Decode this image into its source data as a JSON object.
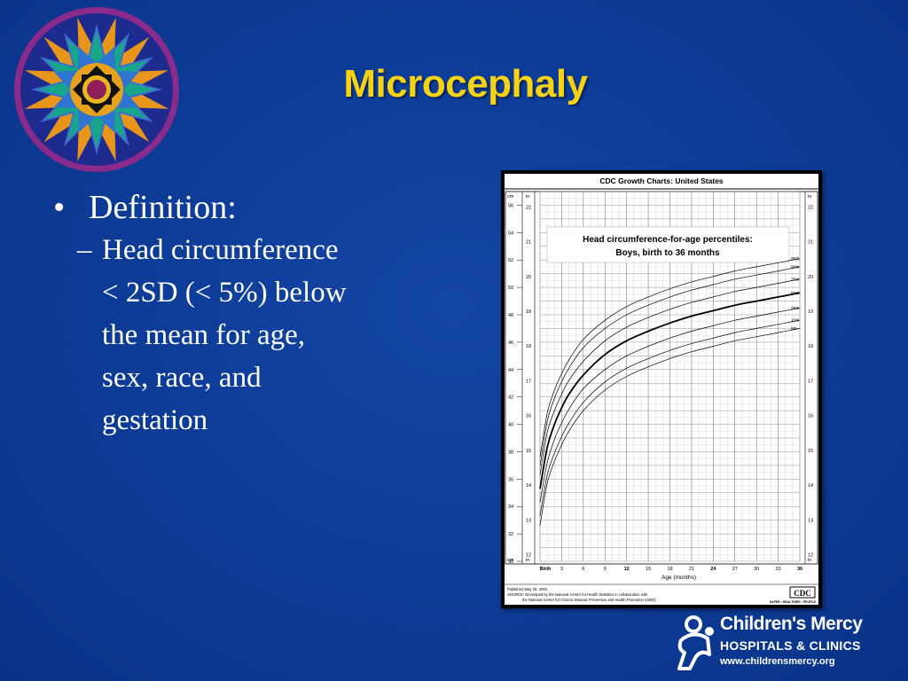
{
  "slide": {
    "title": "Microcephaly",
    "bullet": "Definition:",
    "bullet_marker": "•",
    "sub_marker": "–",
    "sub_lines": [
      "Head circumference",
      "< 2SD (< 5%) below",
      "the mean for age,",
      "sex, race, and",
      "gestation"
    ]
  },
  "brand": {
    "name": "Children's Mercy",
    "subtitle": "HOSPITALS & CLINICS",
    "url": "www.childrensmercy.org"
  },
  "colors": {
    "background": "#0c3b95",
    "title": "#f6d216",
    "text": "#ffffff"
  },
  "icons": {
    "logo": "mandala-star-logo",
    "brand": "family-figure-icon"
  },
  "chart_data": {
    "type": "line",
    "header": "CDC Growth Charts: United States",
    "title": "Head circumference-for-age percentiles:",
    "subtitle": "Boys, birth to 36 months",
    "xlabel": "Age (months)",
    "x_ticks": [
      "Birth",
      "3",
      "6",
      "9",
      "12",
      "15",
      "18",
      "21",
      "24",
      "27",
      "30",
      "33",
      "36"
    ],
    "x_tick_values": [
      0,
      3,
      6,
      9,
      12,
      15,
      18,
      21,
      24,
      27,
      30,
      33,
      36
    ],
    "xlim": [
      0,
      36
    ],
    "left_unit_top": "cm",
    "left_unit_bottom": "cm",
    "right_unit": "in",
    "ylim_cm": [
      30,
      57
    ],
    "cm_ticks": [
      "30",
      "32",
      "34",
      "36",
      "38",
      "40",
      "42",
      "44",
      "46",
      "48",
      "50",
      "52",
      "54",
      "56"
    ],
    "cm_tick_values": [
      30,
      32,
      34,
      36,
      38,
      40,
      42,
      44,
      46,
      48,
      50,
      52,
      54,
      56
    ],
    "in_ticks": [
      "12",
      "13",
      "14",
      "15",
      "16",
      "17",
      "18",
      "19",
      "20",
      "21",
      "22"
    ],
    "in_tick_values": [
      12,
      13,
      14,
      15,
      16,
      17,
      18,
      19,
      20,
      21,
      22
    ],
    "x": [
      0,
      1,
      2,
      3,
      4,
      6,
      9,
      12,
      15,
      18,
      21,
      24,
      27,
      30,
      33,
      36
    ],
    "series": [
      {
        "name": "95th",
        "values": [
          37.6,
          40.8,
          42.5,
          43.7,
          44.7,
          46.2,
          47.6,
          48.6,
          49.3,
          49.9,
          50.4,
          50.8,
          51.2,
          51.5,
          51.8,
          52.1
        ]
      },
      {
        "name": "90th",
        "values": [
          37.0,
          40.2,
          41.9,
          43.1,
          44.1,
          45.6,
          47.0,
          48.0,
          48.7,
          49.3,
          49.8,
          50.2,
          50.6,
          50.9,
          51.2,
          51.5
        ]
      },
      {
        "name": "75th",
        "values": [
          36.3,
          39.4,
          41.0,
          42.2,
          43.2,
          44.6,
          46.1,
          47.1,
          47.8,
          48.4,
          48.9,
          49.3,
          49.7,
          50.0,
          50.3,
          50.6
        ]
      },
      {
        "name": "50th",
        "values": [
          35.3,
          38.3,
          40.0,
          41.2,
          42.2,
          43.6,
          45.1,
          46.1,
          46.8,
          47.4,
          47.9,
          48.3,
          48.7,
          49.0,
          49.3,
          49.6
        ]
      },
      {
        "name": "25th",
        "values": [
          34.3,
          37.2,
          38.9,
          40.1,
          41.1,
          42.6,
          44.0,
          45.0,
          45.7,
          46.3,
          46.8,
          47.2,
          47.6,
          47.9,
          48.2,
          48.5
        ]
      },
      {
        "name": "10th",
        "values": [
          33.3,
          36.3,
          37.9,
          39.1,
          40.1,
          41.6,
          43.1,
          44.1,
          44.8,
          45.4,
          45.9,
          46.3,
          46.7,
          47.0,
          47.3,
          47.6
        ]
      },
      {
        "name": "5th",
        "values": [
          32.6,
          35.7,
          37.3,
          38.5,
          39.5,
          41.0,
          42.5,
          43.5,
          44.2,
          44.8,
          45.3,
          45.7,
          46.1,
          46.4,
          46.7,
          47.0
        ]
      }
    ],
    "footer_published": "Published May 30, 2000.",
    "footer_source_1": "SOURCE: Developed by the National Center for Health Statistics in collaboration with",
    "footer_source_2": "the National Center for Chronic Disease Prevention and Health Promotion (2000).",
    "footer_badge": "CDC",
    "footer_tagline": "SAFER • HEALTHIER • PEOPLE",
    "grid": true
  }
}
